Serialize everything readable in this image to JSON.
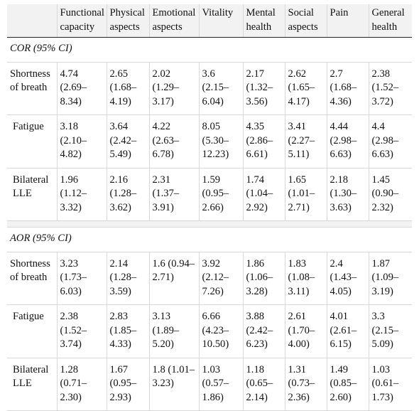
{
  "headers": [
    "",
    "Functional capacity",
    "Physical aspects",
    "Emotional aspects",
    "Vitality",
    "Mental health",
    "Social aspects",
    "Pain",
    "General health"
  ],
  "sections": [
    {
      "title": "COR (95% CI)",
      "rows": [
        {
          "label": "Shortness of breath",
          "values": [
            "4.74 (2.69–8.34)",
            "2.65 (1.68–4.19)",
            "2.02 (1.29–3.17)",
            "3.6 (2.15–6.04)",
            "2.17 (1.32–3.56)",
            "2.62 (1.65–4.17)",
            "2.7 (1.68–4.36)",
            "2.38 (1.52–3.72)"
          ]
        },
        {
          "label": "Fatigue",
          "values": [
            "3.18 (2.10–4.82)",
            "3.64 (2.42–5.49)",
            "4.22 (2.63–6.78)",
            "8.05 (5.30–12.23)",
            "4.35 (2.86–6.61)",
            "3.41 (2.27–5.11)",
            "4.44 (2.98–6.63)",
            "4.4 (2.98–6.63)"
          ]
        },
        {
          "label": "Bilateral LLE",
          "values": [
            "1.96 (1.12–3.32)",
            "2.16 (1.28–3.62)",
            "2.31 (1.37–3.91)",
            "1.59 (0.95–2.66)",
            "1.74 (1.04–2.92)",
            "1.65 (1.01–2.71)",
            "2.18 (1.30–3.63)",
            "1.45 (0.90–2.32)"
          ]
        }
      ]
    },
    {
      "title": "AOR (95% CI)",
      "rows": [
        {
          "label": "Shortness of breath",
          "values": [
            "3.23 (1.73–6.03)",
            "2.14 (1.28–3.59)",
            "1.6 (0.94–2.71)",
            "3.92 (2.12–7.26)",
            "1.86 (1.06–3.28)",
            "1.83 (1.08–3.11)",
            "2.4 (1.43–4.05)",
            "1.87 (1.09–3.19)"
          ]
        },
        {
          "label": "Fatigue",
          "values": [
            "2.38 (1.52–3.74)",
            "2.83 (1.85–4.33)",
            "3.13 (1.89–5.20)",
            "6.66 (4.23–10.50)",
            "3.88 (2.42–6.23)",
            "2.61 (1.70–4.00)",
            "4.01 (2.61–6.15)",
            "3.3 (2.15–5.09)"
          ]
        },
        {
          "label": "Bilateral LLE",
          "values": [
            "1.28 (0.71–2.30)",
            "1.67 (0.95–2.93)",
            "1.8 (1.01–3.23)",
            "1.03 (0.57–1.86)",
            "1.18 (0.65–2.14)",
            "1.31 (0.73–2.36)",
            "1.49 (0.85–2.60)",
            "1.03 (0.61–1.73)"
          ]
        }
      ]
    }
  ]
}
